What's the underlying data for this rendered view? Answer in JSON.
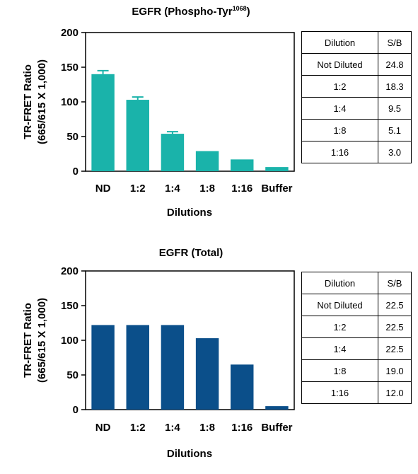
{
  "chart_data": [
    {
      "type": "bar",
      "title": "EGFR (Phospho-Tyr",
      "title_superscript": "1068",
      "title_suffix": ")",
      "ylabel_line1": "TR-FRET Ratio",
      "ylabel_line2": "(665/615 X 1,000)",
      "xlabel": "Dilutions",
      "categories": [
        "ND",
        "1:2",
        "1:4",
        "1:8",
        "1:16",
        "Buffer"
      ],
      "values": [
        140,
        103,
        54,
        29,
        17,
        6
      ],
      "errors": [
        5,
        4,
        3,
        0,
        0,
        0
      ],
      "ylim": [
        0,
        200
      ],
      "yticks": [
        0,
        50,
        100,
        150,
        200
      ],
      "color": "#1ab3aa",
      "grid": false,
      "table": {
        "headers": [
          "Dilution",
          "S/B"
        ],
        "rows": [
          [
            "Not Diluted",
            "24.8"
          ],
          [
            "1:2",
            "18.3"
          ],
          [
            "1:4",
            "9.5"
          ],
          [
            "1:8",
            "5.1"
          ],
          [
            "1:16",
            "3.0"
          ]
        ]
      }
    },
    {
      "type": "bar",
      "title": "EGFR (Total)",
      "ylabel_line1": "TR-FRET Ratio",
      "ylabel_line2": "(665/615 X 1,000)",
      "xlabel": "Dilutions",
      "categories": [
        "ND",
        "1:2",
        "1:4",
        "1:8",
        "1:16",
        "Buffer"
      ],
      "values": [
        122,
        122,
        122,
        103,
        65,
        5
      ],
      "errors": [
        0,
        0,
        0,
        0,
        0,
        0
      ],
      "ylim": [
        0,
        200
      ],
      "yticks": [
        0,
        50,
        100,
        150,
        200
      ],
      "color": "#0b4f8a",
      "grid": false,
      "table": {
        "headers": [
          "Dilution",
          "S/B"
        ],
        "rows": [
          [
            "Not Diluted",
            "22.5"
          ],
          [
            "1:2",
            "22.5"
          ],
          [
            "1:4",
            "22.5"
          ],
          [
            "1:8",
            "19.0"
          ],
          [
            "1:16",
            "12.0"
          ]
        ]
      }
    }
  ]
}
